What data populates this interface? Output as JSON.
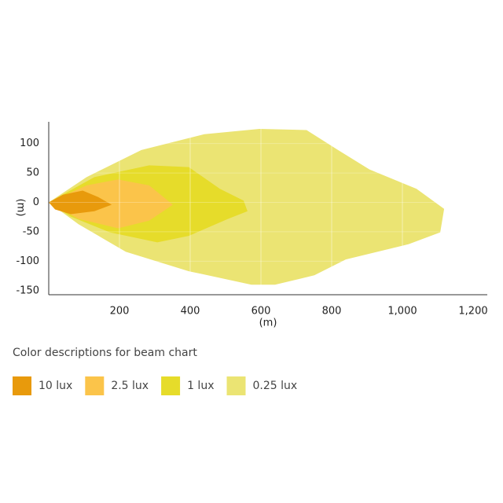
{
  "chart_data": {
    "type": "beam",
    "ylabel": "(m)",
    "xlabel": "(m)",
    "legend_title": "Color descriptions for beam chart",
    "xlim": [
      0,
      1240
    ],
    "ylim": [
      -157,
      137
    ],
    "xticks": [
      200,
      400,
      600,
      800,
      {
        "value": 1000,
        "label": "1,000"
      },
      {
        "value": 1200,
        "label": "1,200"
      }
    ],
    "yticks": [
      -150,
      -100,
      -50,
      0,
      50,
      100
    ],
    "grid": true,
    "series": [
      {
        "name": "10 lux",
        "color": "#e89a0c",
        "x": [
          0,
          40,
          96,
          140,
          178,
          129,
          62,
          18
        ],
        "values": [
          0,
          13,
          20,
          9,
          -4,
          -15,
          -20,
          -12
        ]
      },
      {
        "name": "2.5 lux",
        "color": "#fbc44a",
        "x": [
          0,
          107,
          196,
          284,
          351,
          284,
          196,
          84
        ],
        "values": [
          0,
          29,
          39,
          29,
          -4,
          -31,
          -44,
          -28
        ]
      },
      {
        "name": "1 lux",
        "color": "#e6dc2a",
        "x": [
          0,
          129,
          284,
          396,
          484,
          551,
          562,
          507,
          396,
          307,
          173,
          62
        ],
        "values": [
          0,
          43,
          63,
          60,
          23,
          3,
          -15,
          -28,
          -57,
          -68,
          -51,
          -24
        ]
      },
      {
        "name": "0.25 lux",
        "color": "#ebe473",
        "x": [
          0,
          107,
          262,
          440,
          596,
          729,
          818,
          907,
          1040,
          1118,
          1107,
          1018,
          840,
          751,
          640,
          573,
          396,
          218,
          84
        ],
        "values": [
          0,
          43,
          89,
          116,
          125,
          123,
          89,
          56,
          23,
          -11,
          -51,
          -71,
          -97,
          -124,
          -140,
          -140,
          -117,
          -84,
          -37
        ]
      }
    ]
  }
}
